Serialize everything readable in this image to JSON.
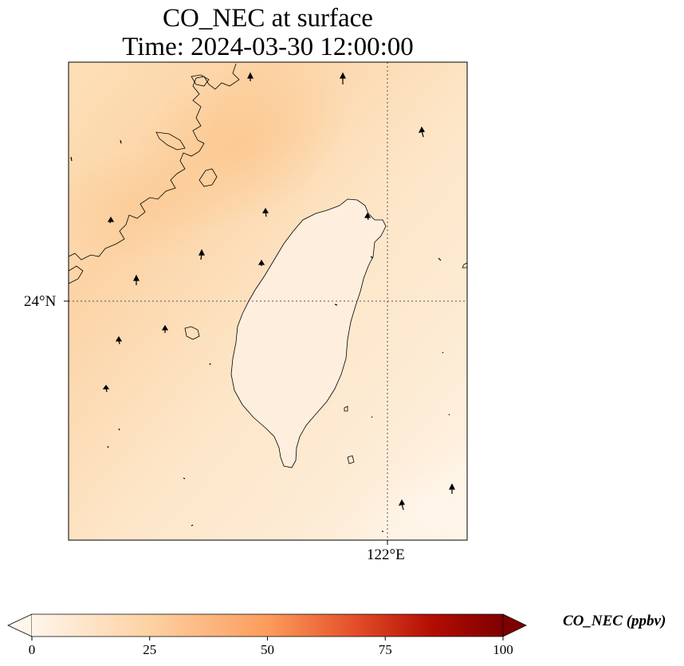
{
  "title": {
    "line1": "CO_NEC at surface",
    "line2": "Time: 2024-03-30 12:00:00"
  },
  "map": {
    "lat_tick_label": "24°N",
    "lon_tick_label": "122°E",
    "field_colors": {
      "light": "#fff5e8",
      "mid": "#fde3c2",
      "dark": "#fccb94"
    }
  },
  "colorbar": {
    "label": "CO_NEC (ppbv)",
    "min": 0,
    "max": 100,
    "extend": "both",
    "ticks": [
      "0",
      "25",
      "50",
      "75",
      "100"
    ],
    "colors": [
      "#fff5eb",
      "#fdd1a3",
      "#fc9c5c",
      "#e5512a",
      "#b20d02",
      "#7f0000"
    ]
  }
}
